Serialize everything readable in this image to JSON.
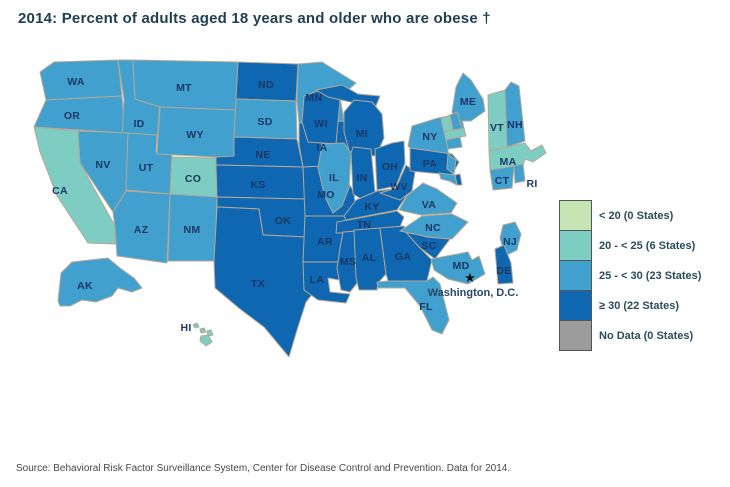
{
  "title": "2014: Percent of adults aged 18 years and older who are obese †",
  "source_note": "Source: Behavioral Risk Factor Surveillance System, Center for Disease Control and Prevention. Data for 2014.",
  "dc": {
    "star": "★",
    "label": "Washington, D.C."
  },
  "legend": {
    "items": [
      {
        "bin": "lt20",
        "label": "< 20 (0 States)",
        "color": "#c5e6b4"
      },
      {
        "bin": "b20_25",
        "label": "20 - < 25 (6 States)",
        "color": "#7dcdc2"
      },
      {
        "bin": "b25_30",
        "label": "25 - < 30 (23 States)",
        "color": "#41a0cd"
      },
      {
        "bin": "gte30",
        "label": "≥ 30 (22 States)",
        "color": "#0f67b1"
      },
      {
        "bin": "nodata",
        "label": "No Data (0 States)",
        "color": "#9c9c9c"
      }
    ]
  },
  "chart_data": {
    "type": "heatmap",
    "subtype": "us-state-choropleth",
    "title": "2014: Percent of adults aged 18 years and older who are obese †",
    "value_unit": "percent of adults aged 18 years and older who are obese",
    "bins": [
      {
        "bin": "lt20",
        "range": "< 20",
        "states_count": 0,
        "color": "#c5e6b4"
      },
      {
        "bin": "b20_25",
        "range": "20 - < 25",
        "states_count": 6,
        "color": "#7dcdc2"
      },
      {
        "bin": "b25_30",
        "range": "25 - < 30",
        "states_count": 23,
        "color": "#41a0cd"
      },
      {
        "bin": "gte30",
        "range": "≥ 30",
        "states_count": 22,
        "color": "#0f67b1"
      },
      {
        "bin": "nodata",
        "range": "No Data",
        "states_count": 0,
        "color": "#9c9c9c"
      }
    ],
    "states": [
      {
        "abbr": "WA",
        "bin": "b25_30"
      },
      {
        "abbr": "OR",
        "bin": "b25_30"
      },
      {
        "abbr": "CA",
        "bin": "b20_25"
      },
      {
        "abbr": "ID",
        "bin": "b25_30"
      },
      {
        "abbr": "NV",
        "bin": "b25_30"
      },
      {
        "abbr": "UT",
        "bin": "b25_30"
      },
      {
        "abbr": "MT",
        "bin": "b25_30"
      },
      {
        "abbr": "WY",
        "bin": "b25_30"
      },
      {
        "abbr": "CO",
        "bin": "b20_25"
      },
      {
        "abbr": "AZ",
        "bin": "b25_30"
      },
      {
        "abbr": "NM",
        "bin": "b25_30"
      },
      {
        "abbr": "ND",
        "bin": "gte30"
      },
      {
        "abbr": "SD",
        "bin": "b25_30"
      },
      {
        "abbr": "NE",
        "bin": "gte30"
      },
      {
        "abbr": "KS",
        "bin": "gte30"
      },
      {
        "abbr": "OK",
        "bin": "gte30"
      },
      {
        "abbr": "TX",
        "bin": "gte30"
      },
      {
        "abbr": "MN",
        "bin": "b25_30"
      },
      {
        "abbr": "IA",
        "bin": "gte30"
      },
      {
        "abbr": "MO",
        "bin": "gte30"
      },
      {
        "abbr": "AR",
        "bin": "gte30"
      },
      {
        "abbr": "LA",
        "bin": "gte30"
      },
      {
        "abbr": "WI",
        "bin": "gte30"
      },
      {
        "abbr": "MI",
        "bin": "gte30"
      },
      {
        "abbr": "IL",
        "bin": "b25_30"
      },
      {
        "abbr": "IN",
        "bin": "gte30"
      },
      {
        "abbr": "OH",
        "bin": "gte30"
      },
      {
        "abbr": "KY",
        "bin": "gte30"
      },
      {
        "abbr": "TN",
        "bin": "gte30"
      },
      {
        "abbr": "MS",
        "bin": "gte30"
      },
      {
        "abbr": "AL",
        "bin": "gte30"
      },
      {
        "abbr": "GA",
        "bin": "gte30"
      },
      {
        "abbr": "SC",
        "bin": "gte30"
      },
      {
        "abbr": "NC",
        "bin": "b25_30"
      },
      {
        "abbr": "VA",
        "bin": "b25_30"
      },
      {
        "abbr": "WV",
        "bin": "gte30"
      },
      {
        "abbr": "FL",
        "bin": "b25_30"
      },
      {
        "abbr": "NY",
        "bin": "b25_30"
      },
      {
        "abbr": "PA",
        "bin": "gte30"
      },
      {
        "abbr": "ME",
        "bin": "b25_30"
      },
      {
        "abbr": "VT",
        "bin": "b20_25"
      },
      {
        "abbr": "NH",
        "bin": "b25_30"
      },
      {
        "abbr": "MA",
        "bin": "b20_25"
      },
      {
        "abbr": "CT",
        "bin": "b25_30"
      },
      {
        "abbr": "RI",
        "bin": "b25_30"
      },
      {
        "abbr": "NJ",
        "bin": "b25_30"
      },
      {
        "abbr": "DE",
        "bin": "gte30"
      },
      {
        "abbr": "MD",
        "bin": "b25_30"
      },
      {
        "abbr": "AK",
        "bin": "b25_30"
      },
      {
        "abbr": "HI",
        "bin": "b20_25"
      },
      {
        "abbr": "DC",
        "bin": "b20_25"
      }
    ]
  }
}
